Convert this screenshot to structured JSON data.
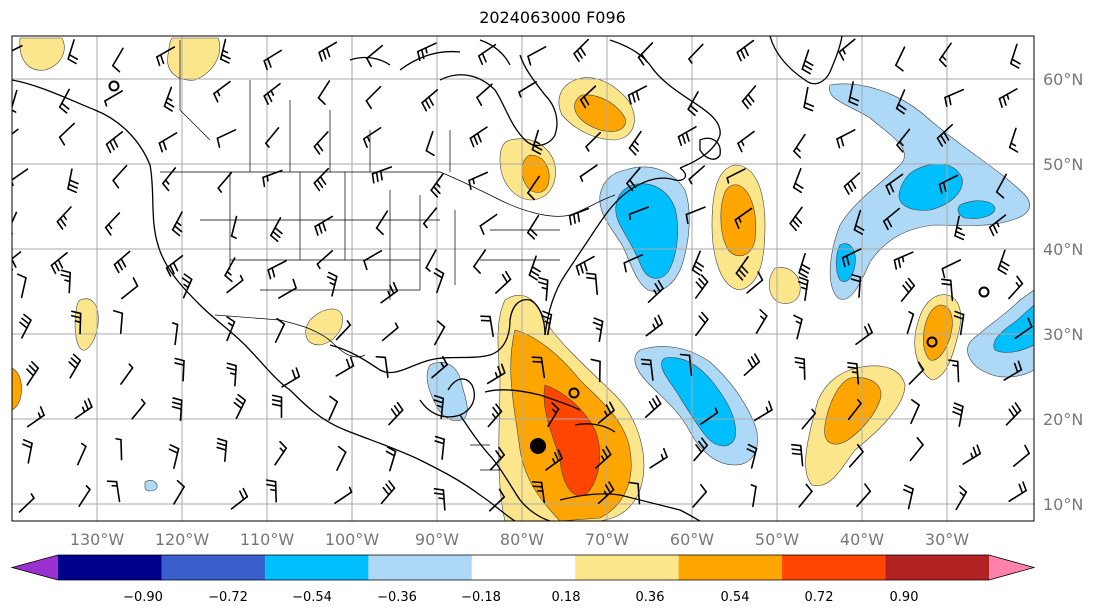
{
  "title": "2024063000 F096",
  "longitude_labels": [
    "130°W",
    "120°W",
    "110°W",
    "100°W",
    "90°W",
    "80°W",
    "70°W",
    "60°W",
    "50°W",
    "40°W",
    "30°W"
  ],
  "latitude_labels": [
    "60°N",
    "50°N",
    "40°N",
    "30°N",
    "20°N",
    "10°N"
  ],
  "colorbar": {
    "extend": "both",
    "levels": [
      "−0.90",
      "−0.72",
      "−0.54",
      "−0.36",
      "−0.18",
      "0.18",
      "0.36",
      "0.54",
      "0.72",
      "0.90"
    ],
    "colors": [
      "#9b30d0",
      "#00008b",
      "#3a5fcd",
      "#00bfff",
      "#add8f6",
      "#ffffff",
      "#fce68c",
      "#ffa500",
      "#ff4500",
      "#b22222",
      "#ff82ab"
    ]
  },
  "palette": {
    "pos1": "#fce68c",
    "pos2": "#ffa500",
    "pos3": "#ff4500",
    "neg1": "#add8f6",
    "neg2": "#00bfff"
  }
}
